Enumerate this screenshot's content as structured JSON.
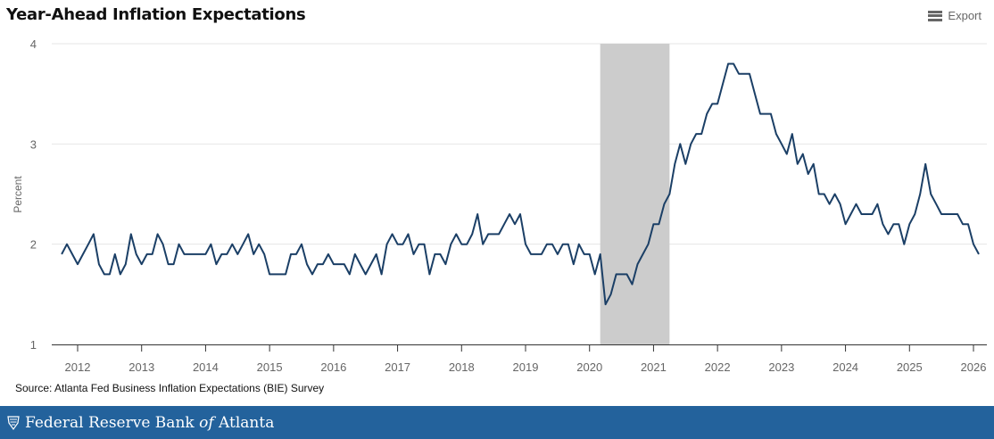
{
  "header": {
    "title": "Year-Ahead Inflation Expectations",
    "export_label": "Export",
    "export_icon": "hamburger-menu-icon"
  },
  "source": "Source: Atlanta Fed Business Inflation Expectations (BIE) Survey",
  "footer": {
    "brand_prefix": "Federal Reserve Bank ",
    "brand_of": "of",
    "brand_suffix": " Atlanta",
    "seal_icon": "fed-eagle-seal-icon"
  },
  "colors": {
    "line": "#1b3f66",
    "recession": "#cccccc",
    "grid": "#e6e6e6",
    "footer": "#23629c"
  },
  "chart_data": {
    "type": "line",
    "title": "Year-Ahead Inflation Expectations",
    "xlabel": "",
    "ylabel": "Percent",
    "ylim": [
      1,
      4
    ],
    "yticks": [
      "1",
      "2",
      "3",
      "4"
    ],
    "xticks": [
      "2012",
      "2013",
      "2014",
      "2015",
      "2016",
      "2017",
      "2018",
      "2019",
      "2020",
      "2021",
      "2022",
      "2023",
      "2024",
      "2025",
      "2026"
    ],
    "x_start": "2011-10",
    "x_frequency": "monthly",
    "grid": true,
    "shaded_regions": [
      {
        "label": "recession",
        "start": "2020-03",
        "end": "2021-04"
      }
    ],
    "series": [
      {
        "name": "Year-Ahead Inflation Expectations",
        "values": [
          1.9,
          2.0,
          1.9,
          1.8,
          1.9,
          2.0,
          2.1,
          1.8,
          1.7,
          1.7,
          1.9,
          1.7,
          1.8,
          2.1,
          1.9,
          1.8,
          1.9,
          1.9,
          2.1,
          2.0,
          1.8,
          1.8,
          2.0,
          1.9,
          1.9,
          1.9,
          1.9,
          1.9,
          2.0,
          1.8,
          1.9,
          1.9,
          2.0,
          1.9,
          2.0,
          2.1,
          1.9,
          2.0,
          1.9,
          1.7,
          1.7,
          1.7,
          1.7,
          1.9,
          1.9,
          2.0,
          1.8,
          1.7,
          1.8,
          1.8,
          1.9,
          1.8,
          1.8,
          1.8,
          1.7,
          1.9,
          1.8,
          1.7,
          1.8,
          1.9,
          1.7,
          2.0,
          2.1,
          2.0,
          2.0,
          2.1,
          1.9,
          2.0,
          2.0,
          1.7,
          1.9,
          1.9,
          1.8,
          2.0,
          2.1,
          2.0,
          2.0,
          2.1,
          2.3,
          2.0,
          2.1,
          2.1,
          2.1,
          2.2,
          2.3,
          2.2,
          2.3,
          2.0,
          1.9,
          1.9,
          1.9,
          2.0,
          2.0,
          1.9,
          2.0,
          2.0,
          1.8,
          2.0,
          1.9,
          1.9,
          1.7,
          1.9,
          1.4,
          1.5,
          1.7,
          1.7,
          1.7,
          1.6,
          1.8,
          1.9,
          2.0,
          2.2,
          2.2,
          2.4,
          2.5,
          2.8,
          3.0,
          2.8,
          3.0,
          3.1,
          3.1,
          3.3,
          3.4,
          3.4,
          3.6,
          3.8,
          3.8,
          3.7,
          3.7,
          3.7,
          3.5,
          3.3,
          3.3,
          3.3,
          3.1,
          3.0,
          2.9,
          3.1,
          2.8,
          2.9,
          2.7,
          2.8,
          2.5,
          2.5,
          2.4,
          2.5,
          2.4,
          2.2,
          2.3,
          2.4,
          2.3,
          2.3,
          2.3,
          2.4,
          2.2,
          2.1,
          2.2,
          2.2,
          2.0,
          2.2,
          2.3,
          2.5,
          2.8,
          2.5,
          2.4,
          2.3,
          2.3,
          2.3,
          2.3,
          2.2,
          2.2,
          2.0,
          1.9
        ]
      }
    ]
  }
}
